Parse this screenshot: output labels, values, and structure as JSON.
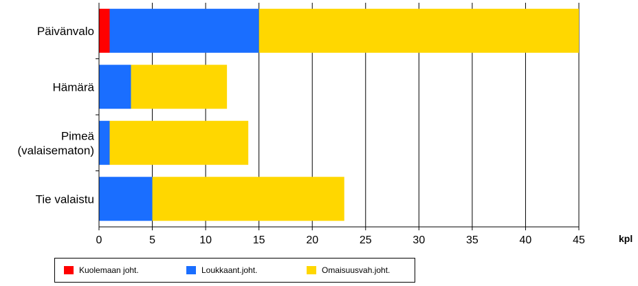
{
  "chart_data": {
    "type": "bar",
    "orientation": "horizontal",
    "stacked": true,
    "categories": [
      "Päivänvalo",
      "Hämärä",
      "Pimeä\n(valaisematon)",
      "Tie valaistu"
    ],
    "series": [
      {
        "name": "Kuolemaan joht.",
        "color": "#ff0000",
        "values": [
          1,
          0,
          0,
          0
        ]
      },
      {
        "name": "Loukkaant.joht.",
        "color": "#1a6eff",
        "values": [
          14,
          3,
          1,
          5
        ]
      },
      {
        "name": "Omaisuusvah.joht.",
        "color": "#ffd700",
        "values": [
          30,
          9,
          13,
          18
        ]
      }
    ],
    "xlim": [
      0,
      45
    ],
    "xticks": [
      0,
      5,
      10,
      15,
      20,
      25,
      30,
      35,
      40,
      45
    ],
    "xunit": "kpl",
    "grid": true,
    "legend_position": "bottom"
  }
}
